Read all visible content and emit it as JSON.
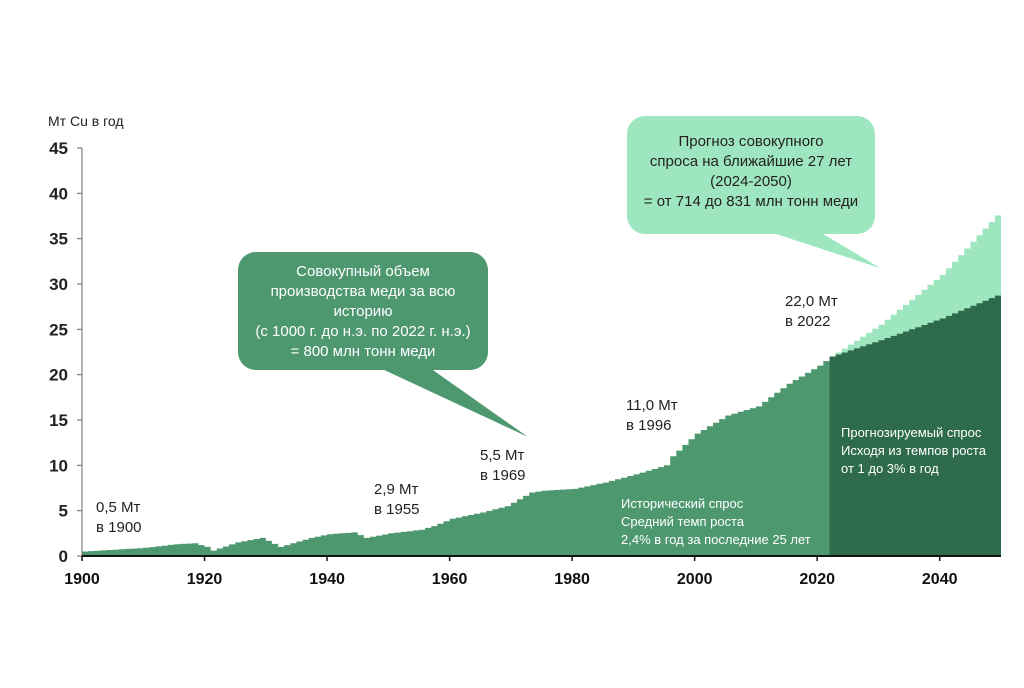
{
  "chart_data": {
    "type": "area",
    "ylabel": "Мт Cu в год",
    "ylim": [
      0,
      45
    ],
    "yticks": [
      "0",
      "5",
      "10",
      "15",
      "20",
      "25",
      "30",
      "35",
      "40",
      "45"
    ],
    "xlim": [
      1900,
      2050
    ],
    "xticks": [
      "1900",
      "1920",
      "1940",
      "1960",
      "1980",
      "2000",
      "2020",
      "2040"
    ],
    "series": [
      {
        "kind": "historical",
        "color": "#4e9870",
        "x": [
          1900,
          1905,
          1910,
          1915,
          1918,
          1920,
          1921,
          1925,
          1929,
          1932,
          1937,
          1940,
          1944,
          1946,
          1950,
          1955,
          1957,
          1960,
          1965,
          1969,
          1973,
          1975,
          1980,
          1985,
          1990,
          1995,
          1996,
          2000,
          2005,
          2010,
          2015,
          2020,
          2022
        ],
        "values": [
          0.5,
          0.7,
          0.9,
          1.3,
          1.4,
          1.0,
          0.6,
          1.5,
          2.0,
          1.0,
          2.0,
          2.4,
          2.6,
          2.0,
          2.5,
          2.9,
          3.3,
          4.1,
          4.8,
          5.5,
          7.0,
          7.2,
          7.4,
          8.1,
          9.0,
          10.0,
          11.0,
          13.5,
          15.5,
          16.5,
          19.0,
          21.0,
          22.0
        ]
      },
      {
        "kind": "forecast-low",
        "color": "#2e6b4a",
        "x": [
          2022,
          2030,
          2040,
          2050
        ],
        "values": [
          22.0,
          23.8,
          26.2,
          29.0
        ]
      },
      {
        "kind": "forecast-high",
        "color": "#9ee6bf",
        "x": [
          2022,
          2030,
          2040,
          2050
        ],
        "values": [
          22.0,
          25.5,
          31.0,
          38.3
        ]
      }
    ],
    "labels": [
      {
        "lines": [
          "0,5 Мт",
          "в 1900"
        ]
      },
      {
        "lines": [
          "2,9 Мт",
          "в 1955"
        ]
      },
      {
        "lines": [
          "5,5 Мт",
          "в 1969"
        ]
      },
      {
        "lines": [
          "11,0 Мт",
          "в 1996"
        ]
      },
      {
        "lines": [
          "22,0 Мт",
          "в 2022"
        ]
      }
    ],
    "inner_notes": [
      {
        "lines": [
          "Исторический спрос",
          "Средний темп роста",
          "2,4% в год за последние 25 лет"
        ]
      },
      {
        "lines": [
          "Прогнозируемый спрос",
          "Исходя из темпов роста",
          "от 1 до 3% в год"
        ]
      }
    ],
    "callouts": [
      {
        "lines": [
          "Совокупный объем",
          "производства меди за всю",
          "историю",
          "(с 1000 г. до н.э. по 2022 г. н.э.)",
          "= 800 млн тонн меди"
        ],
        "color": "#4e9870"
      },
      {
        "lines": [
          "Прогноз совокупного",
          "спроса на ближайшие 27 лет",
          "(2024-2050)",
          "= от 714 до 831 млн тонн меди"
        ],
        "color": "#9ee6bf"
      }
    ]
  }
}
